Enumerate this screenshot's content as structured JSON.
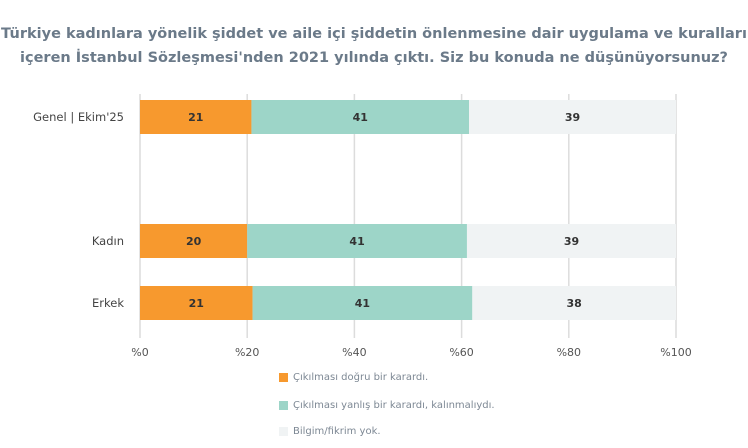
{
  "chart_data": {
    "type": "bar",
    "orientation": "horizontal",
    "stacked": true,
    "title_lines": [
      "Türkiye kadınlara yönelik şiddet ve aile içi şiddetin önlenmesine dair uygulama ve kuralları",
      "içeren İstanbul Sözleşmesi'nden 2021 yılında çıktı. Siz bu konuda ne düşünüyorsunuz?"
    ],
    "categories": [
      "Genel | Ekim'25",
      "Kadın",
      "Erkek"
    ],
    "series": [
      {
        "name": "Çıkılması doğru bir karardı.",
        "color": "#f7992e",
        "values": [
          21,
          20,
          21
        ]
      },
      {
        "name": "Çıkılması yanlış bir karardı, kalınmalıydı.",
        "color": "#9dd5c8",
        "values": [
          41,
          41,
          41
        ]
      },
      {
        "name": "Bilgim/fikrim yok.",
        "color": "#f0f3f4",
        "values": [
          39,
          39,
          38
        ]
      }
    ],
    "xlim": [
      0,
      100
    ],
    "xticks": [
      "%0",
      "%20",
      "%40",
      "%60",
      "%80",
      "%100"
    ],
    "grid": true,
    "legend_position": "bottom"
  }
}
